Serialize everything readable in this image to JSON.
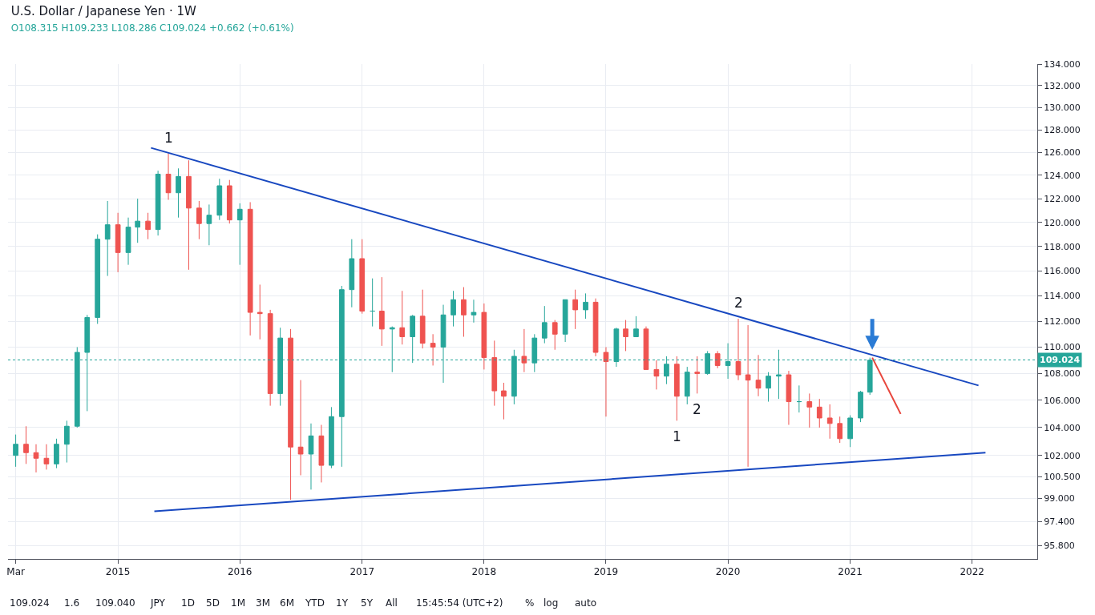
{
  "chart_data": {
    "type": "candlestick",
    "title": "U.S. Dollar / Japanese Yen · 1W",
    "subtitle": "O108.315 H109.233 L108.286 C109.024 +0.662 (+0.61%)",
    "x": [
      "2014-03",
      "2014-04",
      "2014-05",
      "2014-06",
      "2014-07",
      "2014-08",
      "2014-09",
      "2014-10",
      "2014-11",
      "2014-12",
      "2015-01",
      "2015-02",
      "2015-03",
      "2015-04",
      "2015-05",
      "2015-06",
      "2015-07",
      "2015-08",
      "2015-09",
      "2015-10",
      "2015-11",
      "2015-12",
      "2016-01",
      "2016-02",
      "2016-03",
      "2016-04",
      "2016-05",
      "2016-06",
      "2016-07",
      "2016-08",
      "2016-09",
      "2016-10",
      "2016-11",
      "2016-12",
      "2017-01",
      "2017-02",
      "2017-03",
      "2017-04",
      "2017-05",
      "2017-06",
      "2017-07",
      "2017-08",
      "2017-09",
      "2017-10",
      "2017-11",
      "2017-12",
      "2018-01",
      "2018-02",
      "2018-03",
      "2018-04",
      "2018-05",
      "2018-06",
      "2018-07",
      "2018-08",
      "2018-09",
      "2018-10",
      "2018-11",
      "2018-12",
      "2019-01",
      "2019-02",
      "2019-03",
      "2019-04",
      "2019-05",
      "2019-06",
      "2019-07",
      "2019-08",
      "2019-09",
      "2019-10",
      "2019-11",
      "2019-12",
      "2020-01",
      "2020-02",
      "2020-03",
      "2020-04",
      "2020-05",
      "2020-06",
      "2020-07",
      "2020-08",
      "2020-09",
      "2020-10",
      "2020-11",
      "2020-12",
      "2021-01",
      "2021-02",
      "2021-03"
    ],
    "ohlc": [
      [
        102.0,
        103.5,
        101.2,
        102.8
      ],
      [
        102.8,
        104.1,
        101.4,
        102.2
      ],
      [
        102.2,
        102.8,
        100.8,
        101.8
      ],
      [
        101.8,
        102.8,
        101.0,
        101.4
      ],
      [
        101.4,
        103.2,
        101.1,
        102.8
      ],
      [
        102.8,
        104.5,
        101.5,
        104.1
      ],
      [
        104.1,
        110.0,
        104.0,
        109.6
      ],
      [
        109.6,
        112.5,
        105.2,
        112.3
      ],
      [
        112.3,
        119.0,
        111.8,
        118.6
      ],
      [
        118.6,
        121.8,
        115.6,
        119.8
      ],
      [
        119.8,
        120.8,
        115.9,
        117.5
      ],
      [
        117.5,
        120.4,
        116.5,
        119.6
      ],
      [
        119.6,
        122.0,
        118.3,
        120.1
      ],
      [
        120.1,
        120.8,
        118.6,
        119.4
      ],
      [
        119.4,
        124.4,
        118.9,
        124.1
      ],
      [
        124.1,
        125.9,
        121.9,
        122.5
      ],
      [
        122.5,
        124.6,
        120.4,
        123.9
      ],
      [
        123.9,
        125.3,
        116.1,
        121.2
      ],
      [
        121.2,
        121.8,
        118.6,
        119.9
      ],
      [
        119.9,
        121.5,
        118.1,
        120.6
      ],
      [
        120.6,
        123.7,
        120.2,
        123.1
      ],
      [
        123.1,
        123.6,
        119.9,
        120.2
      ],
      [
        120.2,
        121.6,
        116.5,
        121.1
      ],
      [
        121.1,
        121.7,
        110.9,
        112.7
      ],
      [
        112.7,
        114.9,
        110.6,
        112.6
      ],
      [
        112.6,
        112.9,
        105.6,
        106.5
      ],
      [
        106.5,
        111.5,
        105.6,
        110.7
      ],
      [
        110.7,
        111.4,
        98.9,
        102.6
      ],
      [
        102.6,
        107.5,
        100.6,
        102.1
      ],
      [
        102.1,
        104.3,
        99.6,
        103.4
      ],
      [
        103.4,
        104.2,
        100.1,
        101.3
      ],
      [
        101.3,
        105.5,
        101.1,
        104.8
      ],
      [
        104.8,
        114.8,
        101.2,
        114.5
      ],
      [
        114.5,
        118.6,
        113.1,
        117.0
      ],
      [
        117.0,
        118.6,
        112.6,
        112.8
      ],
      [
        112.8,
        115.4,
        111.6,
        112.8
      ],
      [
        112.8,
        115.5,
        110.1,
        111.4
      ],
      [
        111.4,
        111.6,
        108.1,
        111.5
      ],
      [
        111.5,
        114.4,
        110.2,
        110.8
      ],
      [
        110.8,
        112.5,
        108.8,
        112.4
      ],
      [
        112.4,
        114.5,
        109.9,
        110.3
      ],
      [
        110.3,
        111.0,
        108.6,
        110.0
      ],
      [
        110.0,
        113.3,
        107.3,
        112.5
      ],
      [
        112.5,
        114.4,
        111.6,
        113.7
      ],
      [
        113.7,
        114.7,
        110.8,
        112.5
      ],
      [
        112.5,
        113.7,
        111.9,
        112.7
      ],
      [
        112.7,
        113.4,
        108.3,
        109.2
      ],
      [
        109.2,
        110.5,
        105.6,
        106.7
      ],
      [
        106.7,
        107.3,
        104.6,
        106.3
      ],
      [
        106.3,
        109.8,
        105.7,
        109.3
      ],
      [
        109.3,
        111.4,
        108.1,
        108.8
      ],
      [
        108.8,
        111.0,
        108.1,
        110.7
      ],
      [
        110.7,
        113.2,
        110.3,
        111.9
      ],
      [
        111.9,
        112.1,
        109.8,
        111.0
      ],
      [
        111.0,
        113.7,
        110.4,
        113.7
      ],
      [
        113.7,
        114.5,
        111.4,
        112.9
      ],
      [
        112.9,
        114.2,
        112.2,
        113.5
      ],
      [
        113.5,
        113.8,
        109.3,
        109.6
      ],
      [
        109.6,
        110.0,
        104.8,
        108.9
      ],
      [
        108.9,
        111.5,
        108.5,
        111.4
      ],
      [
        111.4,
        112.1,
        109.7,
        110.8
      ],
      [
        110.8,
        112.4,
        110.8,
        111.4
      ],
      [
        111.4,
        111.6,
        108.3,
        108.3
      ],
      [
        108.3,
        109.0,
        106.8,
        107.8
      ],
      [
        107.8,
        109.3,
        107.2,
        108.7
      ],
      [
        108.7,
        109.3,
        104.5,
        106.3
      ],
      [
        106.3,
        108.5,
        105.7,
        108.1
      ],
      [
        108.1,
        109.3,
        106.5,
        108.0
      ],
      [
        108.0,
        109.7,
        107.9,
        109.5
      ],
      [
        109.5,
        109.7,
        108.4,
        108.6
      ],
      [
        108.6,
        110.3,
        107.6,
        108.9
      ],
      [
        108.9,
        112.2,
        107.5,
        107.9
      ],
      [
        107.9,
        111.7,
        101.2,
        107.5
      ],
      [
        107.5,
        109.4,
        106.3,
        106.9
      ],
      [
        106.9,
        108.1,
        105.9,
        107.8
      ],
      [
        107.8,
        109.8,
        106.1,
        107.9
      ],
      [
        107.9,
        108.2,
        104.2,
        105.9
      ],
      [
        105.9,
        107.1,
        105.1,
        105.9
      ],
      [
        105.9,
        106.5,
        104.0,
        105.5
      ],
      [
        105.5,
        106.1,
        104.0,
        104.7
      ],
      [
        104.7,
        105.7,
        103.2,
        104.3
      ],
      [
        104.3,
        104.8,
        102.9,
        103.2
      ],
      [
        103.2,
        104.9,
        102.6,
        104.7
      ],
      [
        104.7,
        106.7,
        104.4,
        106.6
      ],
      [
        106.6,
        109.2,
        106.4,
        109.0
      ]
    ],
    "colors": [
      "#26a69a",
      "#ef5350",
      "#ef5350",
      "#ef5350",
      "#26a69a",
      "#26a69a",
      "#26a69a",
      "#26a69a",
      "#26a69a",
      "#26a69a",
      "#ef5350",
      "#26a69a",
      "#26a69a",
      "#ef5350",
      "#26a69a",
      "#ef5350",
      "#26a69a",
      "#ef5350",
      "#ef5350",
      "#26a69a",
      "#26a69a",
      "#ef5350",
      "#26a69a",
      "#ef5350",
      "#ef5350",
      "#ef5350",
      "#26a69a",
      "#ef5350",
      "#ef5350",
      "#26a69a",
      "#ef5350",
      "#26a69a",
      "#26a69a",
      "#26a69a",
      "#ef5350",
      "#26a69a",
      "#ef5350",
      "#26a69a",
      "#ef5350",
      "#26a69a",
      "#ef5350",
      "#ef5350",
      "#26a69a",
      "#26a69a",
      "#ef5350",
      "#26a69a",
      "#ef5350",
      "#ef5350",
      "#ef5350",
      "#26a69a",
      "#ef5350",
      "#26a69a",
      "#26a69a",
      "#ef5350",
      "#26a69a",
      "#ef5350",
      "#26a69a",
      "#ef5350",
      "#ef5350",
      "#26a69a",
      "#ef5350",
      "#26a69a",
      "#ef5350",
      "#ef5350",
      "#26a69a",
      "#ef5350",
      "#26a69a",
      "#ef5350",
      "#26a69a",
      "#ef5350",
      "#26a69a",
      "#ef5350",
      "#ef5350",
      "#ef5350",
      "#26a69a",
      "#26a69a",
      "#ef5350",
      "#26a69a",
      "#ef5350",
      "#ef5350",
      "#ef5350",
      "#ef5350",
      "#26a69a",
      "#26a69a",
      "#26a69a"
    ],
    "series": [
      {
        "type": "line",
        "color": "#1848c0",
        "x": [
          "2015-04-10",
          "2022-01-20"
        ],
        "values": [
          126.4,
          107.1
        ]
      },
      {
        "type": "line",
        "color": "#1848c0",
        "x": [
          "2015-04-20",
          "2022-02-10"
        ],
        "values": [
          98.1,
          102.2
        ]
      },
      {
        "type": "line",
        "color": "#e8453c",
        "x": [
          "2021-03-08",
          "2021-06-01"
        ],
        "values": [
          109.2,
          105.0
        ]
      }
    ],
    "ylim": [
      94.9,
      134.0
    ],
    "yticks": [
      {
        "value": 95.8,
        "label": "95.800"
      },
      {
        "value": 97.4,
        "label": "97.400"
      },
      {
        "value": 99,
        "label": "99.000"
      },
      {
        "value": 100.5,
        "label": "100.500"
      },
      {
        "value": 102,
        "label": "102.000"
      },
      {
        "value": 104,
        "label": "104.000"
      },
      {
        "value": 106,
        "label": "106.000"
      },
      {
        "value": 108,
        "label": "108.000"
      },
      {
        "value": 110,
        "label": "110.000"
      },
      {
        "value": 112,
        "label": "112.000"
      },
      {
        "value": 114,
        "label": "114.000"
      },
      {
        "value": 116,
        "label": "116.000"
      },
      {
        "value": 118,
        "label": "118.000"
      },
      {
        "value": 120,
        "label": "120.000"
      },
      {
        "value": 122,
        "label": "122.000"
      },
      {
        "value": 124,
        "label": "124.000"
      },
      {
        "value": 126,
        "label": "126.000"
      },
      {
        "value": 128,
        "label": "128.000"
      },
      {
        "value": 130,
        "label": "130.000"
      },
      {
        "value": 132,
        "label": "132.000"
      },
      {
        "value": 134,
        "label": "134.000"
      }
    ],
    "xlim": [
      "2014-02-06",
      "2022-07-15"
    ],
    "xticks": [
      {
        "value": "2014-03-01",
        "label": "Mar"
      },
      {
        "value": "2015-01-01",
        "label": "2015"
      },
      {
        "value": "2016-01-01",
        "label": "2016"
      },
      {
        "value": "2017-01-01",
        "label": "2017"
      },
      {
        "value": "2018-01-01",
        "label": "2018"
      },
      {
        "value": "2019-01-01",
        "label": "2019"
      },
      {
        "value": "2020-01-01",
        "label": "2020"
      },
      {
        "value": "2021-01-01",
        "label": "2021"
      },
      {
        "value": "2022-01-01",
        "label": "2022"
      }
    ],
    "log": true,
    "grid": true,
    "ref_lines": [
      {
        "axis": "y",
        "value": 109.024,
        "label": "109.024",
        "color": "#26a69a",
        "line_style": "dotted"
      }
    ],
    "annotations": [
      {
        "text": "1",
        "x": "2015-06",
        "y": 125.9
      },
      {
        "text": "2",
        "x": "2020-02",
        "y": 112.2
      },
      {
        "text": "1",
        "x": "2019-08",
        "y": 104.5
      },
      {
        "text": "2",
        "x": "2019-10",
        "y": 106.5
      },
      "109.024",
      "1.6",
      "109.040",
      "JPY",
      "1D",
      "5D",
      "1M",
      "3M",
      "6M",
      "YTD",
      "1Y",
      "5Y",
      "All",
      "15:45:54 (UTC+2)",
      "%",
      "log",
      "auto"
    ]
  }
}
